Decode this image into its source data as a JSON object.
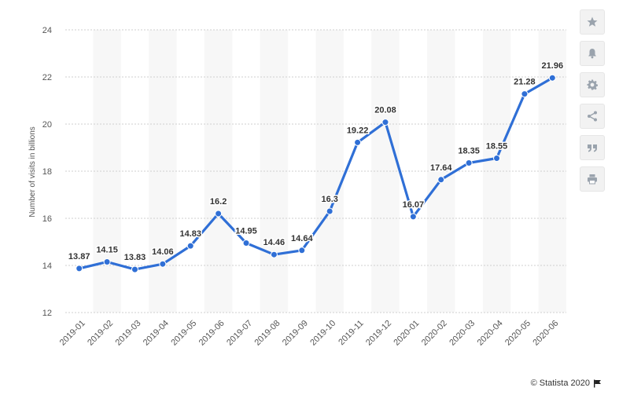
{
  "chart_data": {
    "type": "line",
    "title": "",
    "xlabel": "",
    "ylabel": "Number of visits in billions",
    "ylim": [
      12,
      24
    ],
    "yticks": [
      12,
      14,
      16,
      18,
      20,
      22,
      24
    ],
    "grid": true,
    "categories": [
      "2019-01",
      "2019-02",
      "2019-03",
      "2019-04",
      "2019-05",
      "2019-06",
      "2019-07",
      "2019-08",
      "2019-09",
      "2019-10",
      "2019-11",
      "2019-12",
      "2020-01",
      "2020-02",
      "2020-03",
      "2020-04",
      "2020-05",
      "2020-06"
    ],
    "values": [
      13.87,
      14.15,
      13.83,
      14.06,
      14.83,
      16.2,
      14.95,
      14.46,
      14.64,
      16.3,
      19.22,
      20.08,
      16.07,
      17.64,
      18.35,
      18.55,
      21.28,
      21.96
    ],
    "value_labels": [
      "13.87",
      "14.15",
      "13.83",
      "14.06",
      "14.83",
      "16.2",
      "14.95",
      "14.46",
      "14.64",
      "16.3",
      "19.22",
      "20.08",
      "16.07",
      "17.64",
      "18.35",
      "18.55",
      "21.28",
      "21.96"
    ],
    "series_color": "#2f6fd6"
  },
  "toolbar": {
    "items": [
      {
        "name": "star-icon"
      },
      {
        "name": "bell-icon"
      },
      {
        "name": "gear-icon"
      },
      {
        "name": "share-icon"
      },
      {
        "name": "quote-icon"
      },
      {
        "name": "print-icon"
      }
    ]
  },
  "credit": {
    "text": "© Statista 2020",
    "icon": "flag-icon"
  }
}
